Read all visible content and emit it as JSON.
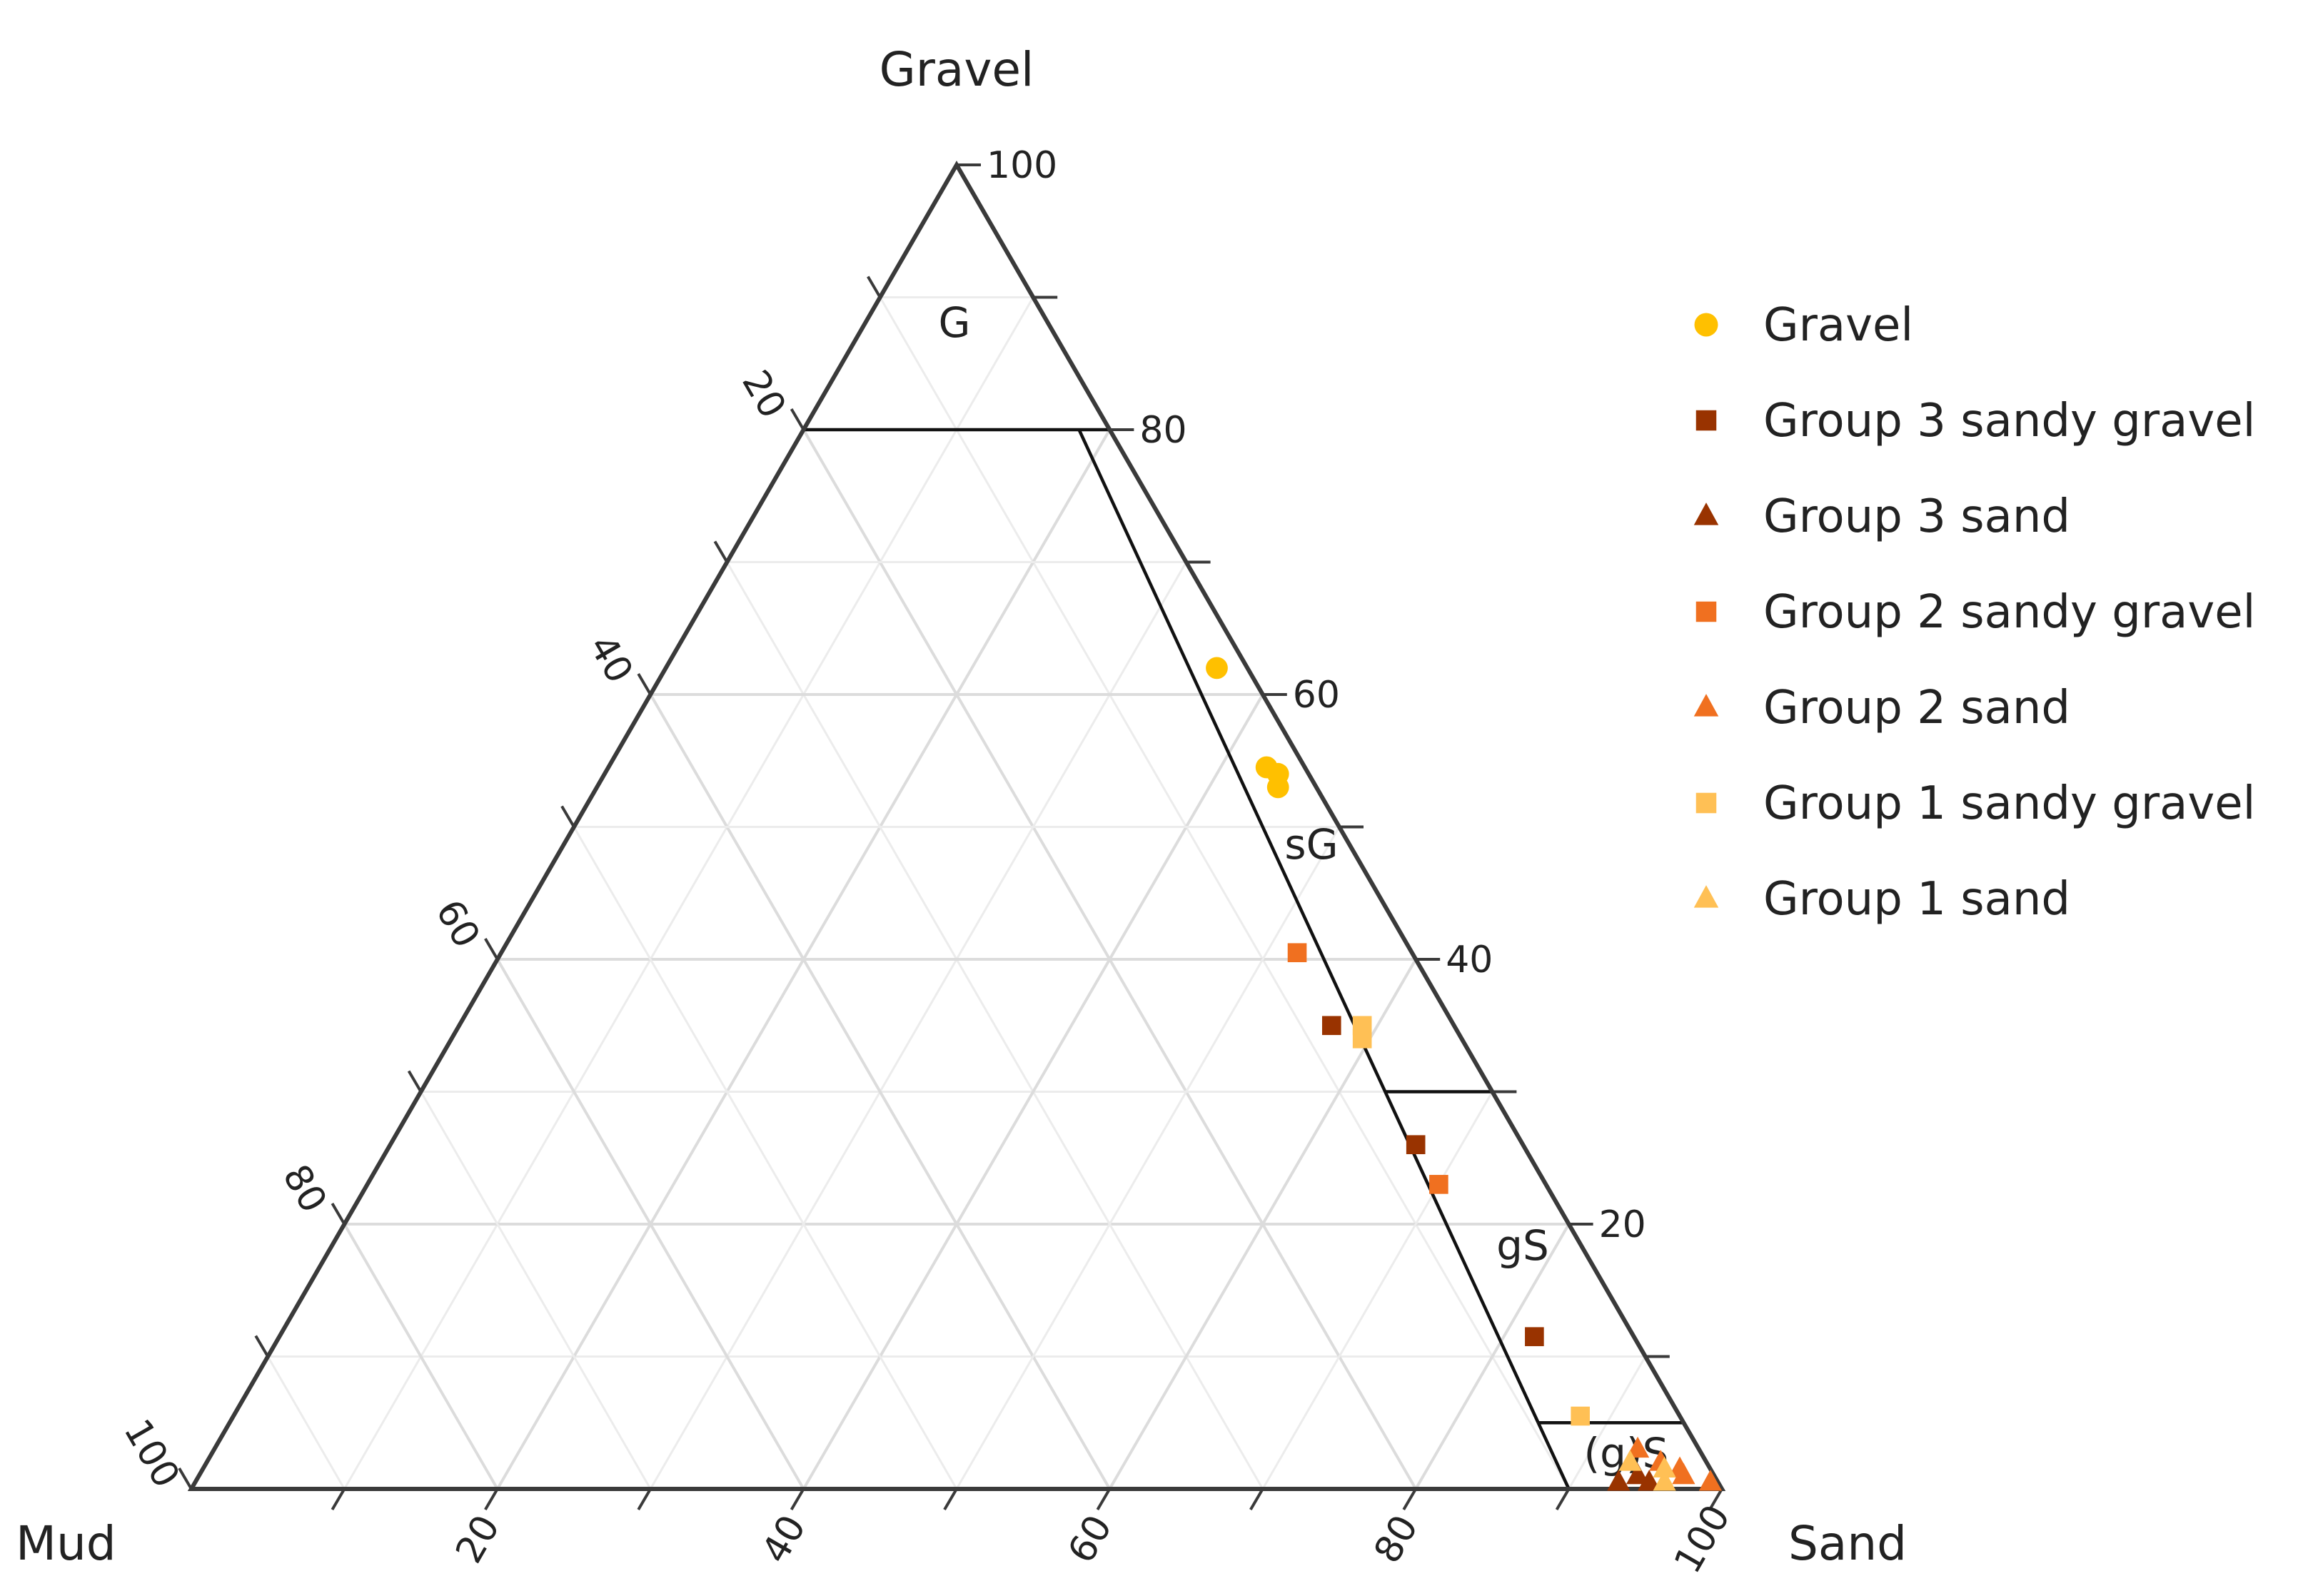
{
  "chart_data": {
    "type": "scatter",
    "subtype": "ternary",
    "axes": {
      "top": "Gravel",
      "left": "Mud",
      "right": "Sand"
    },
    "ticks": [
      20,
      40,
      60,
      80,
      100
    ],
    "grid_step": 10,
    "grid": true,
    "legend_position": "right",
    "regions": [
      {
        "label": "G"
      },
      {
        "label": "sG"
      },
      {
        "label": "gS"
      },
      {
        "label": "(g)S"
      }
    ],
    "series": [
      {
        "name": "Gravel",
        "marker": "circle",
        "color": "#FFC000",
        "points": [
          {
            "gravel": 62,
            "sand": 36
          },
          {
            "gravel": 54.5,
            "sand": 43
          },
          {
            "gravel": 54,
            "sand": 44
          },
          {
            "gravel": 53,
            "sand": 44.5
          }
        ]
      },
      {
        "name": "Group 3 sandy gravel",
        "marker": "square",
        "color": "#993300",
        "points": [
          {
            "gravel": 35,
            "sand": 57
          },
          {
            "gravel": 26,
            "sand": 67
          },
          {
            "gravel": 11.5,
            "sand": 82
          }
        ]
      },
      {
        "name": "Group 3 sand",
        "marker": "triangle",
        "color": "#993300",
        "points": [
          {
            "gravel": 0.5,
            "sand": 93
          },
          {
            "gravel": 1,
            "sand": 94
          },
          {
            "gravel": 0.5,
            "sand": 95
          }
        ]
      },
      {
        "name": "Group 2 sandy gravel",
        "marker": "square",
        "color": "#F07020",
        "points": [
          {
            "gravel": 40.5,
            "sand": 52
          },
          {
            "gravel": 23,
            "sand": 70
          }
        ]
      },
      {
        "name": "Group 2 sand",
        "marker": "triangle",
        "color": "#F07020",
        "points": [
          {
            "gravel": 3,
            "sand": 93
          },
          {
            "gravel": 2,
            "sand": 95
          },
          {
            "gravel": 1,
            "sand": 97
          },
          {
            "gravel": 0.5,
            "sand": 99
          },
          {
            "gravel": 1.5,
            "sand": 96.5
          }
        ]
      },
      {
        "name": "Group 1 sandy gravel",
        "marker": "square",
        "color": "#FFC055",
        "points": [
          {
            "gravel": 35,
            "sand": 59
          },
          {
            "gravel": 34,
            "sand": 59.5
          },
          {
            "gravel": 5.5,
            "sand": 88
          }
        ]
      },
      {
        "name": "Group 1 sand",
        "marker": "triangle",
        "color": "#FFC055",
        "points": [
          {
            "gravel": 2,
            "sand": 93
          },
          {
            "gravel": 0.5,
            "sand": 96
          },
          {
            "gravel": 1.5,
            "sand": 95.5
          }
        ]
      }
    ]
  }
}
